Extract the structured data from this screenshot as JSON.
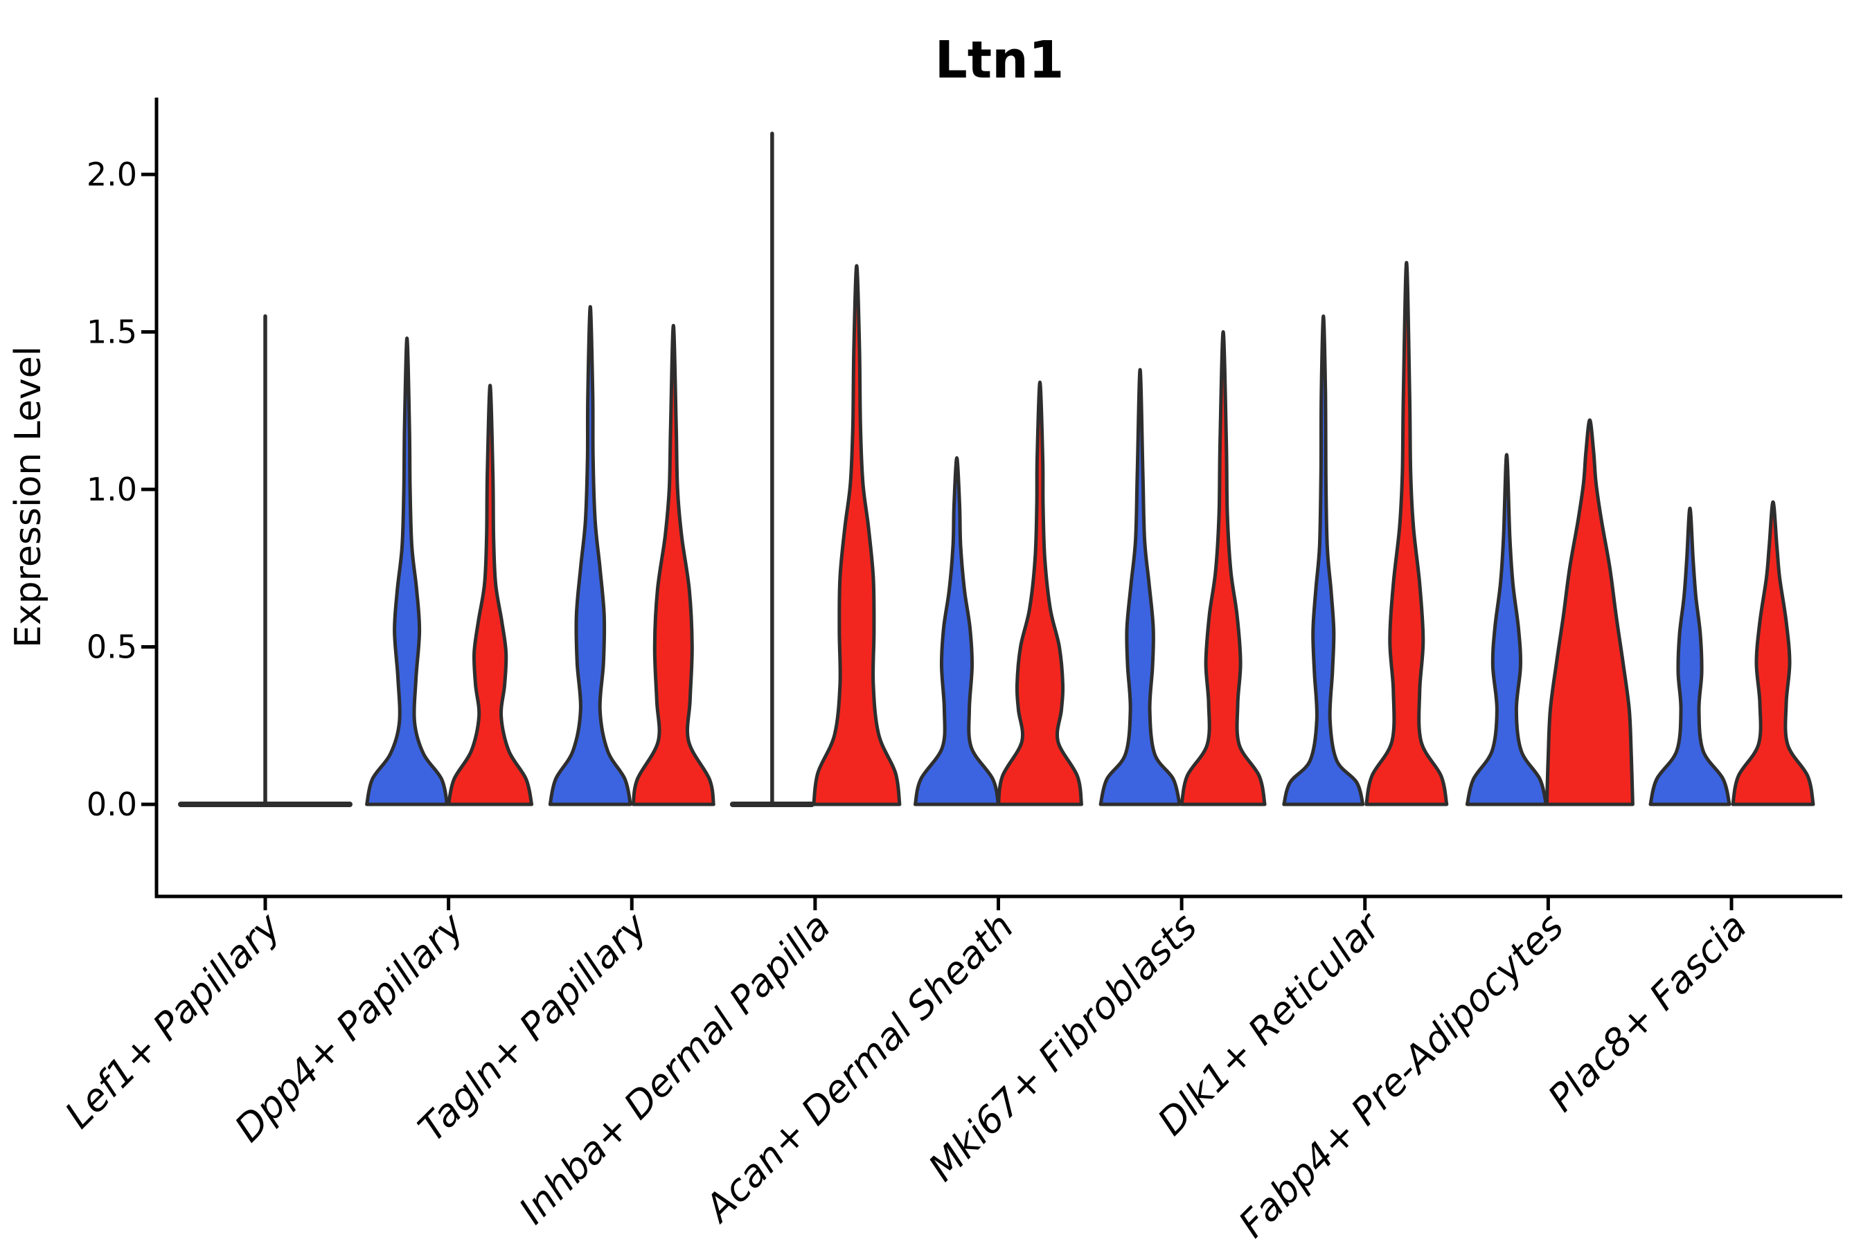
{
  "page": {
    "background": "#ffffff"
  },
  "chart_data": {
    "type": "violin",
    "title": "Ltn1",
    "ylabel": "Expression Level",
    "xlabel": "",
    "ylim": [
      0.0,
      2.25
    ],
    "yticks": [
      0.0,
      0.5,
      1.0,
      1.5,
      2.0
    ],
    "ytick_labels": [
      "0.0",
      "0.5",
      "1.0",
      "1.5",
      "2.0"
    ],
    "grid": "off",
    "legend": "none",
    "x_tick_label_rotation_deg": 45,
    "groups": [
      {
        "name": "group-blue",
        "color": "#3C64E0"
      },
      {
        "name": "group-red",
        "color": "#F3261F"
      }
    ],
    "outline_color": "#2E2E2E",
    "categories": [
      "Lef1+ Papillary",
      "Dpp4+ Papillary",
      "Tagln+ Papillary",
      "Inhba+ Dermal Papilla",
      "Acan+ Dermal Sheath",
      "Mki67+ Fibroblasts",
      "Dlk1+ Reticular",
      "Fabp4+ Pre-Adipocytes",
      "Plac8+ Fascia"
    ],
    "violins": [
      {
        "category": 0,
        "group": "blue",
        "style": "flat",
        "x_offset": 0,
        "flat_halfwidth": 122,
        "spike": true,
        "max": 1.55,
        "profile": []
      },
      {
        "category": 0,
        "group": "red",
        "style": "none",
        "x_offset": 60,
        "max": 0,
        "profile": []
      },
      {
        "category": 1,
        "group": "blue",
        "style": "kde",
        "x_offset": -60,
        "max": 1.48,
        "profile": [
          [
            0,
            58
          ],
          [
            0.08,
            50
          ],
          [
            0.16,
            24
          ],
          [
            0.26,
            11
          ],
          [
            0.4,
            13
          ],
          [
            0.55,
            18
          ],
          [
            0.68,
            14
          ],
          [
            0.82,
            7
          ],
          [
            1.0,
            4.5
          ],
          [
            1.2,
            3.5
          ],
          [
            1.48,
            0
          ]
        ]
      },
      {
        "category": 1,
        "group": "red",
        "style": "kde",
        "x_offset": 60,
        "max": 1.33,
        "profile": [
          [
            0,
            60
          ],
          [
            0.08,
            52
          ],
          [
            0.17,
            27
          ],
          [
            0.28,
            16
          ],
          [
            0.38,
            21
          ],
          [
            0.48,
            23
          ],
          [
            0.58,
            17
          ],
          [
            0.7,
            8
          ],
          [
            0.85,
            5
          ],
          [
            1.05,
            4
          ],
          [
            1.33,
            0
          ]
        ]
      },
      {
        "category": 2,
        "group": "blue",
        "style": "kde",
        "x_offset": -60,
        "max": 1.58,
        "profile": [
          [
            0,
            58
          ],
          [
            0.08,
            50
          ],
          [
            0.17,
            25
          ],
          [
            0.3,
            14
          ],
          [
            0.45,
            19
          ],
          [
            0.6,
            20
          ],
          [
            0.75,
            14
          ],
          [
            0.9,
            7
          ],
          [
            1.1,
            4
          ],
          [
            1.3,
            3.5
          ],
          [
            1.58,
            0
          ]
        ]
      },
      {
        "category": 2,
        "group": "red",
        "style": "kde",
        "x_offset": 60,
        "max": 1.52,
        "profile": [
          [
            0,
            58
          ],
          [
            0.08,
            52
          ],
          [
            0.2,
            22
          ],
          [
            0.33,
            24
          ],
          [
            0.5,
            27
          ],
          [
            0.68,
            23
          ],
          [
            0.85,
            12
          ],
          [
            1.0,
            6
          ],
          [
            1.2,
            4
          ],
          [
            1.52,
            0
          ]
        ]
      },
      {
        "category": 3,
        "group": "blue",
        "style": "flat",
        "x_offset": -62,
        "flat_halfwidth": 57,
        "spike": true,
        "max": 2.13,
        "profile": []
      },
      {
        "category": 3,
        "group": "red",
        "style": "kde",
        "x_offset": 60,
        "max": 1.71,
        "profile": [
          [
            0,
            62
          ],
          [
            0.1,
            56
          ],
          [
            0.22,
            32
          ],
          [
            0.38,
            24
          ],
          [
            0.55,
            25
          ],
          [
            0.72,
            24
          ],
          [
            0.88,
            17
          ],
          [
            1.02,
            9
          ],
          [
            1.2,
            5.5
          ],
          [
            1.45,
            4
          ],
          [
            1.71,
            0
          ]
        ]
      },
      {
        "category": 4,
        "group": "blue",
        "style": "kde",
        "x_offset": -60,
        "max": 1.1,
        "profile": [
          [
            0,
            60
          ],
          [
            0.08,
            52
          ],
          [
            0.18,
            21
          ],
          [
            0.3,
            18
          ],
          [
            0.44,
            22
          ],
          [
            0.56,
            19
          ],
          [
            0.68,
            11
          ],
          [
            0.82,
            5.5
          ],
          [
            0.95,
            4
          ],
          [
            1.1,
            0
          ]
        ]
      },
      {
        "category": 4,
        "group": "red",
        "style": "kde",
        "x_offset": 60,
        "max": 1.34,
        "profile": [
          [
            0,
            60
          ],
          [
            0.09,
            54
          ],
          [
            0.2,
            26
          ],
          [
            0.3,
            31
          ],
          [
            0.38,
            33
          ],
          [
            0.5,
            28
          ],
          [
            0.62,
            15
          ],
          [
            0.78,
            7
          ],
          [
            0.95,
            4.5
          ],
          [
            1.1,
            4
          ],
          [
            1.34,
            0
          ]
        ]
      },
      {
        "category": 5,
        "group": "blue",
        "style": "kde",
        "x_offset": -60,
        "max": 1.38,
        "profile": [
          [
            0,
            57
          ],
          [
            0.08,
            48
          ],
          [
            0.16,
            21
          ],
          [
            0.3,
            14
          ],
          [
            0.44,
            18
          ],
          [
            0.56,
            19
          ],
          [
            0.7,
            13
          ],
          [
            0.84,
            6.5
          ],
          [
            1.05,
            4
          ],
          [
            1.38,
            0
          ]
        ]
      },
      {
        "category": 5,
        "group": "red",
        "style": "kde",
        "x_offset": 60,
        "max": 1.5,
        "profile": [
          [
            0,
            60
          ],
          [
            0.09,
            52
          ],
          [
            0.19,
            23
          ],
          [
            0.32,
            21
          ],
          [
            0.45,
            25
          ],
          [
            0.6,
            20
          ],
          [
            0.74,
            11
          ],
          [
            0.92,
            6
          ],
          [
            1.15,
            4.5
          ],
          [
            1.5,
            0
          ]
        ]
      },
      {
        "category": 6,
        "group": "blue",
        "style": "kde",
        "x_offset": -60,
        "max": 1.55,
        "profile": [
          [
            0,
            57
          ],
          [
            0.07,
            48
          ],
          [
            0.14,
            19
          ],
          [
            0.27,
            9.5
          ],
          [
            0.42,
            13
          ],
          [
            0.55,
            15
          ],
          [
            0.68,
            11
          ],
          [
            0.82,
            5.5
          ],
          [
            1.05,
            3.5
          ],
          [
            1.3,
            3
          ],
          [
            1.55,
            0
          ]
        ]
      },
      {
        "category": 6,
        "group": "red",
        "style": "kde",
        "x_offset": 60,
        "max": 1.72,
        "profile": [
          [
            0,
            58
          ],
          [
            0.09,
            50
          ],
          [
            0.2,
            21
          ],
          [
            0.36,
            19
          ],
          [
            0.52,
            24
          ],
          [
            0.7,
            19
          ],
          [
            0.88,
            10
          ],
          [
            1.05,
            6
          ],
          [
            1.3,
            4.5
          ],
          [
            1.72,
            0
          ]
        ]
      },
      {
        "category": 7,
        "group": "blue",
        "style": "kde",
        "x_offset": -60,
        "max": 1.11,
        "profile": [
          [
            0,
            57
          ],
          [
            0.08,
            48
          ],
          [
            0.17,
            21
          ],
          [
            0.3,
            14
          ],
          [
            0.44,
            20
          ],
          [
            0.56,
            17
          ],
          [
            0.7,
            9
          ],
          [
            0.85,
            4.5
          ],
          [
            1.11,
            0
          ]
        ]
      },
      {
        "category": 7,
        "group": "red",
        "style": "kde",
        "x_offset": 60,
        "max": 1.22,
        "profile": [
          [
            0,
            62
          ],
          [
            0.15,
            60
          ],
          [
            0.3,
            57
          ],
          [
            0.45,
            48
          ],
          [
            0.6,
            38
          ],
          [
            0.75,
            29
          ],
          [
            0.9,
            17
          ],
          [
            1.02,
            9
          ],
          [
            1.12,
            5.5
          ],
          [
            1.22,
            0
          ]
        ]
      },
      {
        "category": 8,
        "group": "blue",
        "style": "kde",
        "x_offset": -60,
        "max": 0.94,
        "profile": [
          [
            0,
            57
          ],
          [
            0.08,
            48
          ],
          [
            0.17,
            19
          ],
          [
            0.3,
            13
          ],
          [
            0.42,
            17
          ],
          [
            0.54,
            15
          ],
          [
            0.66,
            8.5
          ],
          [
            0.78,
            4.5
          ],
          [
            0.94,
            0
          ]
        ]
      },
      {
        "category": 8,
        "group": "red",
        "style": "kde",
        "x_offset": 60,
        "max": 0.96,
        "profile": [
          [
            0,
            58
          ],
          [
            0.09,
            50
          ],
          [
            0.19,
            21
          ],
          [
            0.32,
            19
          ],
          [
            0.45,
            24
          ],
          [
            0.58,
            19
          ],
          [
            0.72,
            9.5
          ],
          [
            0.82,
            5.5
          ],
          [
            0.96,
            0
          ]
        ]
      }
    ]
  }
}
